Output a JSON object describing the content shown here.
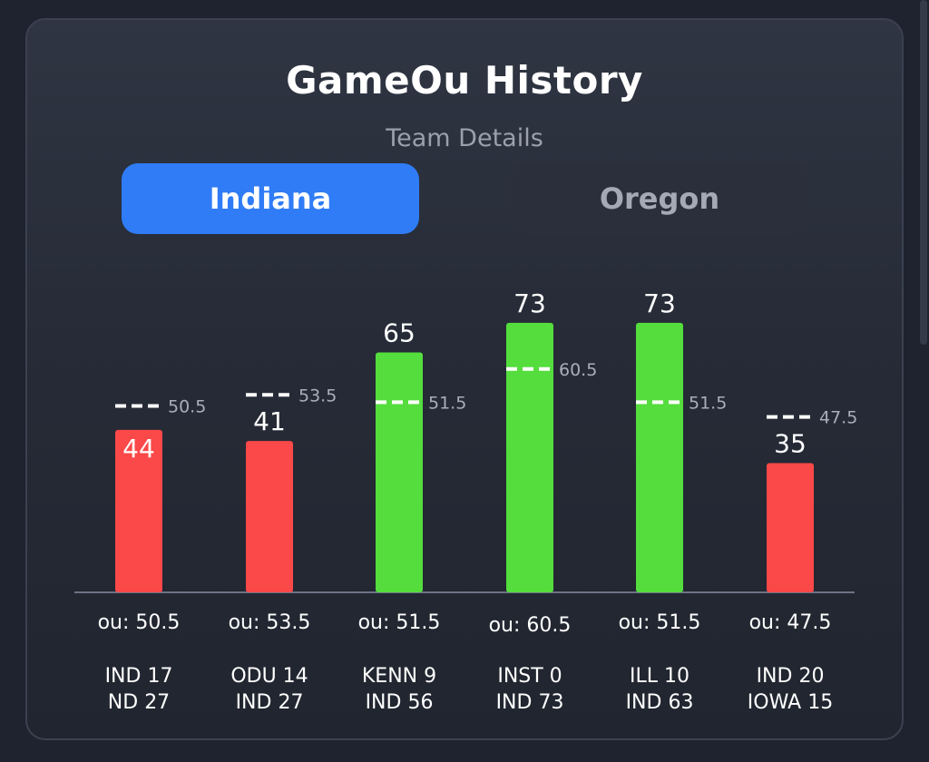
{
  "header": {
    "title": "GameOu History",
    "subtitle": "Team Details"
  },
  "tabs": [
    {
      "label": "Indiana",
      "active": true
    },
    {
      "label": "Oregon",
      "active": false
    }
  ],
  "colors": {
    "over": "#55dd3e",
    "under": "#fb4848",
    "tab_active": "#2f7cf6",
    "line_marker": "#ffffff"
  },
  "chart_data": {
    "type": "bar",
    "categories": [
      "IND 17 / ND 27",
      "ODU 14 / IND 27",
      "KENN 9 / IND 56",
      "INST 0 / IND 73",
      "ILL 10 / IND 63",
      "IND 20 / IOWA 15"
    ],
    "values": [
      44,
      41,
      65,
      73,
      73,
      35
    ],
    "ou_lines": [
      50.5,
      53.5,
      51.5,
      60.5,
      51.5,
      47.5
    ],
    "ou_labels": [
      "ou: 50.5",
      "ou: 53.5",
      "ou: 51.5",
      "ou: 60.5",
      "ou: 51.5",
      "ou: 47.5"
    ],
    "game_lines": [
      [
        "IND 17",
        "ND 27"
      ],
      [
        "ODU 14",
        "IND 27"
      ],
      [
        "KENN 9",
        "IND 56"
      ],
      [
        "INST 0",
        "IND 73"
      ],
      [
        "ILL 10",
        "IND 63"
      ],
      [
        "IND 20",
        "IOWA 15"
      ]
    ],
    "result": [
      "under",
      "under",
      "over",
      "over",
      "over",
      "under"
    ],
    "ylim": [
      0,
      80
    ]
  }
}
